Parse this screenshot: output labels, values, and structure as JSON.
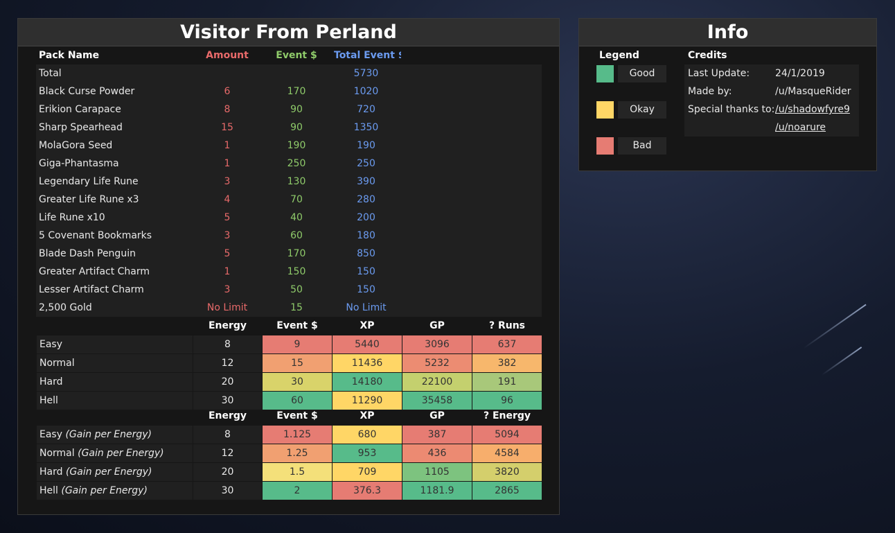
{
  "colors": {
    "good": "#57bb8a",
    "okay": "#ffd666",
    "bad": "#e67c73",
    "amount": "#e86a6a",
    "event": "#8fcb6a",
    "total": "#6b9bf0"
  },
  "main": {
    "title": "Visitor From Perland",
    "pack_headers": {
      "name": "Pack Name",
      "amount": "Amount",
      "event": "Event $",
      "total": "Total Event $"
    },
    "total_row": {
      "label": "Total",
      "total": "5730"
    },
    "packs": [
      {
        "name": "Black Curse Powder",
        "amount": "6",
        "event": "170",
        "total": "1020"
      },
      {
        "name": "Erikion Carapace",
        "amount": "8",
        "event": "90",
        "total": "720"
      },
      {
        "name": "Sharp Spearhead",
        "amount": "15",
        "event": "90",
        "total": "1350"
      },
      {
        "name": "MolaGora Seed",
        "amount": "1",
        "event": "190",
        "total": "190"
      },
      {
        "name": "Giga-Phantasma",
        "amount": "1",
        "event": "250",
        "total": "250"
      },
      {
        "name": "Legendary Life Rune",
        "amount": "3",
        "event": "130",
        "total": "390"
      },
      {
        "name": "Greater Life Rune x3",
        "amount": "4",
        "event": "70",
        "total": "280"
      },
      {
        "name": "Life Rune x10",
        "amount": "5",
        "event": "40",
        "total": "200"
      },
      {
        "name": "5 Covenant Bookmarks",
        "amount": "3",
        "event": "60",
        "total": "180"
      },
      {
        "name": "Blade Dash Penguin",
        "amount": "5",
        "event": "170",
        "total": "850"
      },
      {
        "name": "Greater Artifact Charm",
        "amount": "1",
        "event": "150",
        "total": "150"
      },
      {
        "name": "Lesser Artifact Charm",
        "amount": "3",
        "event": "50",
        "total": "150"
      },
      {
        "name": "2,500 Gold",
        "amount": "No Limit",
        "event": "15",
        "total": "No Limit"
      }
    ],
    "runs_headers": {
      "energy": "Energy",
      "event": "Event $",
      "xp": "XP",
      "gp": "GP",
      "extra": "? Runs"
    },
    "runs": [
      {
        "label": "Easy",
        "energy": "8",
        "event": "9",
        "xp": "5440",
        "gp": "3096",
        "extra": "637",
        "colors": [
          "#e67c73",
          "#e67c73",
          "#e67c73",
          "#e67c73"
        ]
      },
      {
        "label": "Normal",
        "energy": "12",
        "event": "15",
        "xp": "11436",
        "gp": "5232",
        "extra": "382",
        "colors": [
          "#f1a071",
          "#ffd666",
          "#ec8c72",
          "#f7b76c"
        ]
      },
      {
        "label": "Hard",
        "energy": "20",
        "event": "30",
        "xp": "14180",
        "gp": "22100",
        "extra": "191",
        "colors": [
          "#d9d36a",
          "#57bb8a",
          "#c4d06e",
          "#a8c87a"
        ]
      },
      {
        "label": "Hell",
        "energy": "30",
        "event": "60",
        "xp": "11290",
        "gp": "35458",
        "extra": "96",
        "colors": [
          "#57bb8a",
          "#ffd666",
          "#57bb8a",
          "#57bb8a"
        ]
      }
    ],
    "gain_headers": {
      "energy": "Energy",
      "event": "Event $",
      "xp": "XP",
      "gp": "GP",
      "extra": "? Energy"
    },
    "gain_suffix": "(Gain per Energy)",
    "gain": [
      {
        "label": "Easy",
        "energy": "8",
        "event": "1.125",
        "xp": "680",
        "gp": "387",
        "extra": "5094",
        "colors": [
          "#e67c73",
          "#ffd666",
          "#e67c73",
          "#e67c73"
        ]
      },
      {
        "label": "Normal",
        "energy": "12",
        "event": "1.25",
        "xp": "953",
        "gp": "436",
        "extra": "4584",
        "colors": [
          "#f1a071",
          "#57bb8a",
          "#ec8a72",
          "#f7ae6c"
        ]
      },
      {
        "label": "Hard",
        "energy": "20",
        "event": "1.5",
        "xp": "709",
        "gp": "1105",
        "extra": "3820",
        "colors": [
          "#f4e07a",
          "#ffd666",
          "#7dc37f",
          "#d4cf6c"
        ]
      },
      {
        "label": "Hell",
        "energy": "30",
        "event": "2",
        "xp": "376.3",
        "gp": "1181.9",
        "extra": "2865",
        "colors": [
          "#57bb8a",
          "#e67c73",
          "#57bb8a",
          "#57bb8a"
        ]
      }
    ]
  },
  "info": {
    "title": "Info",
    "legend_title": "Legend",
    "legend": [
      {
        "label": "Good",
        "color": "#57bb8a"
      },
      {
        "label": "Okay",
        "color": "#ffd666"
      },
      {
        "label": "Bad",
        "color": "#e67c73"
      }
    ],
    "credits_title": "Credits",
    "credits": {
      "last_update_label": "Last Update:",
      "last_update": "24/1/2019",
      "made_by_label": "Made by:",
      "made_by": "/u/MasqueRider",
      "thanks_label": "Special thanks to:",
      "thanks_1": "/u/shadowfyre9",
      "thanks_2": "/u/noarure"
    }
  }
}
